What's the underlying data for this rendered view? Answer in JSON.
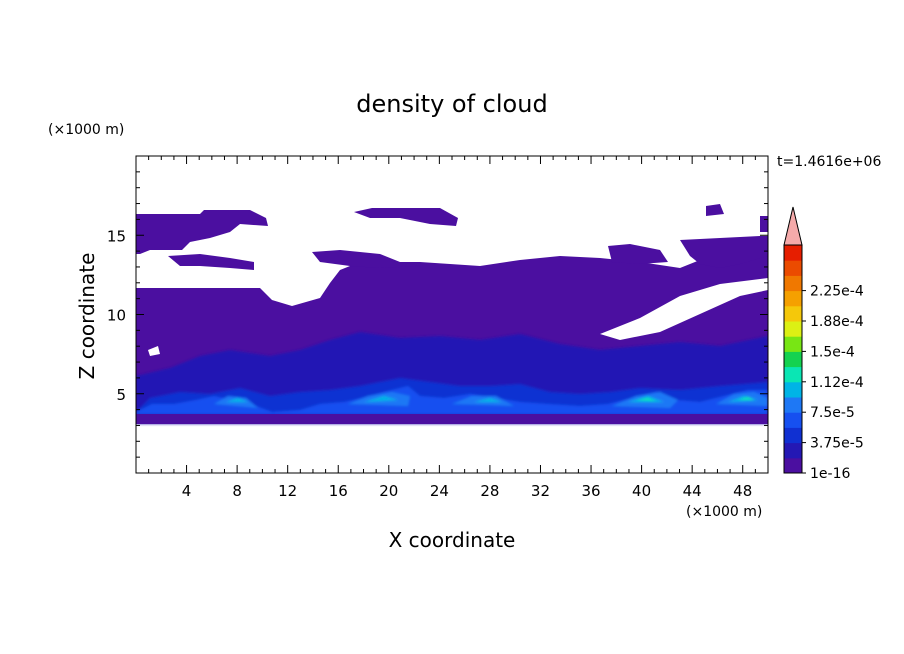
{
  "chart_data": {
    "type": "heatmap",
    "title": "density of cloud",
    "xlabel": "X coordinate",
    "ylabel": "Z coordinate",
    "x_unit": "(×1000 m)",
    "y_unit": "(×1000 m)",
    "time_label": "t=1.4616e+06",
    "xlim": [
      0,
      50
    ],
    "ylim": [
      0,
      20
    ],
    "x_ticks": [
      4,
      8,
      12,
      16,
      20,
      24,
      28,
      32,
      36,
      40,
      44,
      48
    ],
    "y_ticks": [
      5,
      10,
      15
    ],
    "colorbar": {
      "colors": [
        "#4b0fa0",
        "#2418b4",
        "#1030d2",
        "#1650f0",
        "#1e78f5",
        "#00b4e6",
        "#0ae6b4",
        "#14d250",
        "#78e614",
        "#dcf014",
        "#f5c80a",
        "#f5a000",
        "#f07800",
        "#eb4b00",
        "#e61e00"
      ],
      "extend_color": "#f5aaaa",
      "labels": [
        "1e-16",
        "3.75e-5",
        "7.5e-5",
        "1.12e-4",
        "1.5e-4",
        "1.88e-4",
        "2.25e-4"
      ]
    }
  }
}
